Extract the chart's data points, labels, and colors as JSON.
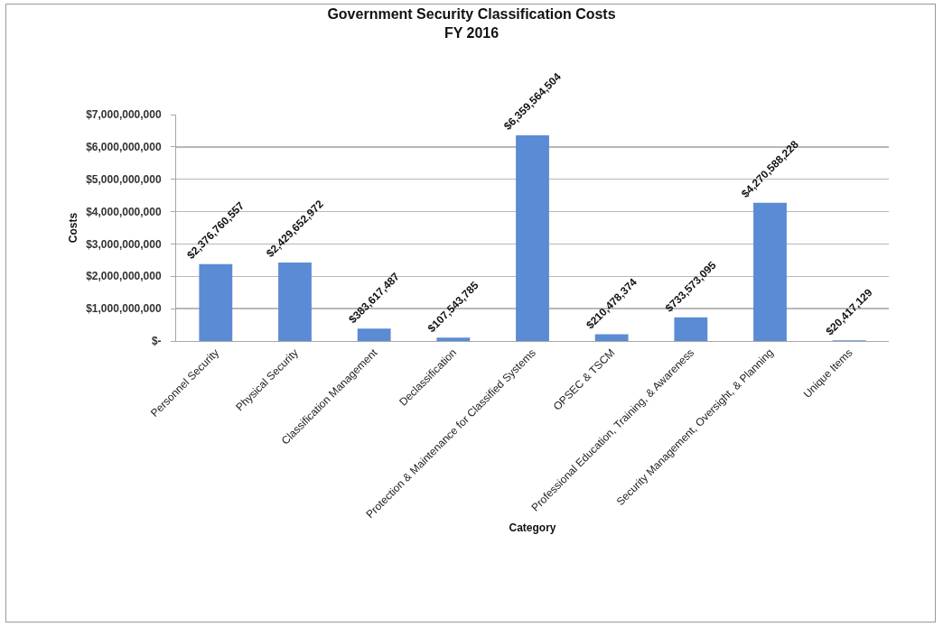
{
  "chart_data": {
    "type": "bar",
    "title": "Government Security Classification Costs",
    "subtitle": "FY 2016",
    "xlabel": "Category",
    "ylabel": "Costs",
    "categories": [
      "Personnel Security",
      "Physical Security",
      "Classification Management",
      "Declassification",
      "Protection & Maintenance for Classified Systems",
      "OPSEC & TSCM",
      "Professional Education, Training, & Awareness",
      "Security Management, Oversight, & Planning",
      "Unique Items"
    ],
    "values": [
      2376760557,
      2429652972,
      383617487,
      107543785,
      6359564504,
      210478374,
      733573095,
      4270588228,
      20417129
    ],
    "value_labels": [
      "$2,376,760,557",
      "$2,429,652,972",
      "$383,617,487",
      "$107,543,785",
      "$6,359,564,504",
      "$210,478,374",
      "$733,573,095",
      "$4,270,588,228",
      "$20,417,129"
    ],
    "color": "#5b8bd4",
    "ylim": [
      0,
      7000000000
    ],
    "yticks": [
      {
        "value": 0,
        "label": "$-"
      },
      {
        "value": 1000000000,
        "label": "$1,000,000,000"
      },
      {
        "value": 2000000000,
        "label": "$2,000,000,000"
      },
      {
        "value": 3000000000,
        "label": "$3,000,000,000"
      },
      {
        "value": 4000000000,
        "label": "$4,000,000,000"
      },
      {
        "value": 5000000000,
        "label": "$5,000,000,000"
      },
      {
        "value": 6000000000,
        "label": "$6,000,000,000"
      },
      {
        "value": 7000000000,
        "label": "$7,000,000,000"
      }
    ],
    "grid": "y"
  }
}
